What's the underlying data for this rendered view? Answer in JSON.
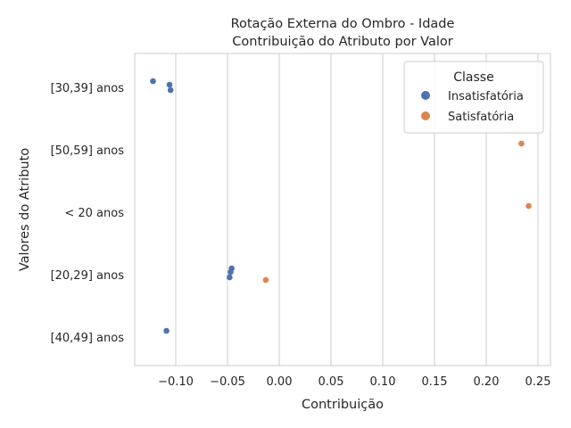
{
  "chart_data": {
    "type": "scatter",
    "title_lines": [
      "Rotação Externa do Ombro - Idade",
      "Contribuição do Atributo por Valor"
    ],
    "xlabel": "Contribuição",
    "ylabel": "Valores do Atributo",
    "xlim": [
      -0.14,
      0.26
    ],
    "x_ticks": [
      -0.1,
      -0.05,
      0.0,
      0.05,
      0.1,
      0.15,
      0.2,
      0.25
    ],
    "x_tick_labels": [
      "−0.10",
      "−0.05",
      "0.00",
      "0.05",
      "0.10",
      "0.15",
      "0.20",
      "0.25"
    ],
    "categories": [
      "[30,39] anos",
      "[50,59] anos",
      "< 20 anos",
      "[20,29] anos",
      "[40,49] anos"
    ],
    "grid": true,
    "legend": {
      "title": "Classe",
      "placement": "top-right"
    },
    "series": [
      {
        "name": "Insatisfatória",
        "color": "#4c72b0",
        "points": [
          {
            "category": "[30,39] anos",
            "x": -0.122
          },
          {
            "category": "[30,39] anos",
            "x": -0.106
          },
          {
            "category": "[30,39] anos",
            "x": -0.105
          },
          {
            "category": "[20,29] anos",
            "x": -0.046
          },
          {
            "category": "[20,29] anos",
            "x": -0.047
          },
          {
            "category": "[20,29] anos",
            "x": -0.048
          },
          {
            "category": "[40,49] anos",
            "x": -0.109
          }
        ]
      },
      {
        "name": "Satisfatória",
        "color": "#dd8452",
        "points": [
          {
            "category": "[50,59] anos",
            "x": 0.234
          },
          {
            "category": "< 20 anos",
            "x": 0.241
          },
          {
            "category": "[20,29] anos",
            "x": -0.013
          }
        ]
      }
    ]
  }
}
